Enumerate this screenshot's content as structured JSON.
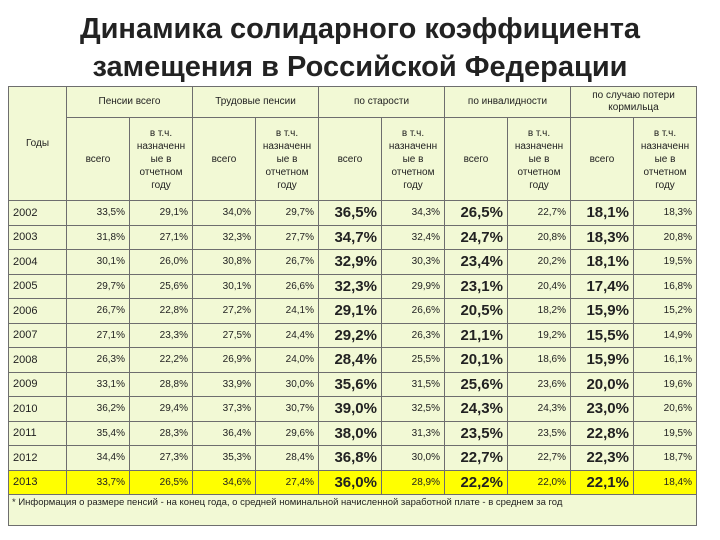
{
  "title_line1": "Динамика солидарного коэффициента",
  "title_line2": "замещения в Российской Федерации",
  "header": {
    "years": "Годы",
    "groups": [
      "Пенсии всего",
      "Трудовые пенсии",
      "по старости",
      "по инвалидности",
      "по случаю потери кормильца"
    ],
    "sub_total": "всего",
    "sub_assigned": "в т.ч. назначенн ые в отчетном году"
  },
  "rows": [
    {
      "year": "2002",
      "v": [
        "33,5%",
        "29,1%",
        "34,0%",
        "29,7%",
        "36,5%",
        "34,3%",
        "26,5%",
        "22,7%",
        "18,1%",
        "18,3%"
      ]
    },
    {
      "year": "2003",
      "v": [
        "31,8%",
        "27,1%",
        "32,3%",
        "27,7%",
        "34,7%",
        "32,4%",
        "24,7%",
        "20,8%",
        "18,3%",
        "20,8%"
      ]
    },
    {
      "year": "2004",
      "v": [
        "30,1%",
        "26,0%",
        "30,8%",
        "26,7%",
        "32,9%",
        "30,3%",
        "23,4%",
        "20,2%",
        "18,1%",
        "19,5%"
      ]
    },
    {
      "year": "2005",
      "v": [
        "29,7%",
        "25,6%",
        "30,1%",
        "26,6%",
        "32,3%",
        "29,9%",
        "23,1%",
        "20,4%",
        "17,4%",
        "16,8%"
      ]
    },
    {
      "year": "2006",
      "v": [
        "26,7%",
        "22,8%",
        "27,2%",
        "24,1%",
        "29,1%",
        "26,6%",
        "20,5%",
        "18,2%",
        "15,9%",
        "15,2%"
      ]
    },
    {
      "year": "2007",
      "v": [
        "27,1%",
        "23,3%",
        "27,5%",
        "24,4%",
        "29,2%",
        "26,3%",
        "21,1%",
        "19,2%",
        "15,5%",
        "14,9%"
      ]
    },
    {
      "year": "2008",
      "v": [
        "26,3%",
        "22,2%",
        "26,9%",
        "24,0%",
        "28,4%",
        "25,5%",
        "20,1%",
        "18,6%",
        "15,9%",
        "16,1%"
      ]
    },
    {
      "year": "2009",
      "v": [
        "33,1%",
        "28,8%",
        "33,9%",
        "30,0%",
        "35,6%",
        "31,5%",
        "25,6%",
        "23,6%",
        "20,0%",
        "19,6%"
      ]
    },
    {
      "year": "2010",
      "v": [
        "36,2%",
        "29,4%",
        "37,3%",
        "30,7%",
        "39,0%",
        "32,5%",
        "24,3%",
        "24,3%",
        "23,0%",
        "20,6%"
      ]
    },
    {
      "year": "2011",
      "v": [
        "35,4%",
        "28,3%",
        "36,4%",
        "29,6%",
        "38,0%",
        "31,3%",
        "23,5%",
        "23,5%",
        "22,8%",
        "19,5%"
      ]
    },
    {
      "year": "2012",
      "v": [
        "34,4%",
        "27,3%",
        "35,3%",
        "28,4%",
        "36,8%",
        "30,0%",
        "22,7%",
        "22,7%",
        "22,3%",
        "18,7%"
      ]
    },
    {
      "year": "2013",
      "v": [
        "33,7%",
        "26,5%",
        "34,6%",
        "27,4%",
        "36,0%",
        "28,9%",
        "22,2%",
        "22,0%",
        "22,1%",
        "18,4%"
      ]
    }
  ],
  "highlight_color": "#ffff00",
  "footnote": "* Информация о размере пенсий - на конец года, о средней номинальной начисленной заработной плате - в среднем за год"
}
